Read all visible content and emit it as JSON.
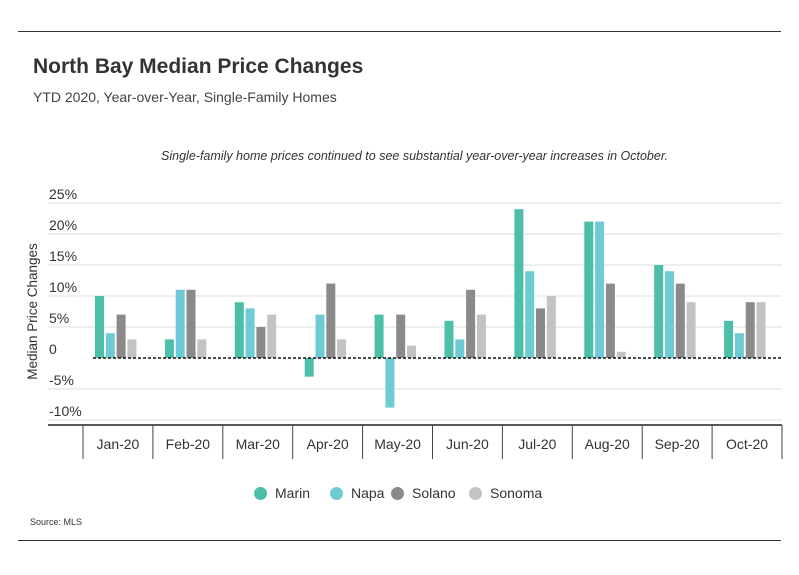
{
  "header": {
    "title": "North Bay Median Price Changes",
    "subtitle": "YTD 2020, Year-over-Year, Single-Family Homes"
  },
  "annotation": "Single-family home prices continued to see substantial year-over-year increases in October.",
  "source": "Source:  MLS",
  "chart_data": {
    "type": "bar",
    "title": "North Bay Median Price Changes",
    "subtitle": "YTD 2020, Year-over-Year, Single-Family Homes",
    "xlabel": "",
    "ylabel": "Median Price Changes",
    "categories": [
      "Jan-20",
      "Feb-20",
      "Mar-20",
      "Apr-20",
      "May-20",
      "Jun-20",
      "Jul-20",
      "Aug-20",
      "Sep-20",
      "Oct-20"
    ],
    "y_ticks": [
      "25%",
      "20%",
      "15%",
      "10%",
      "5%",
      "0",
      "-5%",
      "-10%"
    ],
    "y_tick_values": [
      25,
      20,
      15,
      10,
      5,
      0,
      -5,
      -10
    ],
    "ylim": [
      -11,
      25
    ],
    "grid": true,
    "zero_line": "dashed",
    "legend_position": "bottom",
    "series": [
      {
        "name": "Marin",
        "color": "#4dbfa9",
        "values": [
          10,
          3,
          9,
          -3,
          7,
          6,
          24,
          22,
          15,
          6
        ]
      },
      {
        "name": "Napa",
        "color": "#6ecbd3",
        "values": [
          4,
          11,
          8,
          7,
          -8,
          3,
          14,
          22,
          14,
          4
        ]
      },
      {
        "name": "Solano",
        "color": "#8a8a8a",
        "values": [
          7,
          11,
          5,
          12,
          7,
          11,
          8,
          12,
          12,
          9
        ]
      },
      {
        "name": "Sonoma",
        "color": "#c3c3c3",
        "values": [
          3,
          3,
          7,
          3,
          2,
          7,
          10,
          1,
          9,
          9
        ]
      }
    ]
  }
}
